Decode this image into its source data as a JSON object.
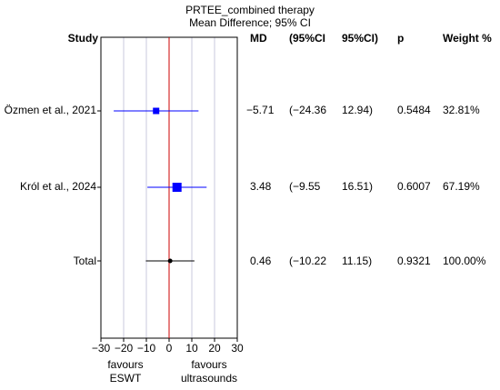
{
  "chart_data": {
    "type": "forest",
    "title": "PRTEE_combined therapy",
    "subtitle": "Mean Difference; 95% CI",
    "columns": {
      "study": "Study",
      "md": "MD",
      "ci_low": "(95%CI",
      "ci_high": "95%CI)",
      "p": "p",
      "weight": "Weight %"
    },
    "rows": [
      {
        "study": "Özmen et al., 2021",
        "md": -5.71,
        "md_text": "−5.71",
        "ci_low_text": "(−24.36",
        "ci_high_text": "12.94)",
        "ci": [
          -24.36,
          12.94
        ],
        "p": "0.5484",
        "weight": "32.81%",
        "color": "#0000ff",
        "marker": "square-small"
      },
      {
        "study": "Król et al., 2024",
        "md": 3.48,
        "md_text": "3.48",
        "ci_low_text": "(−9.55",
        "ci_high_text": "16.51)",
        "ci": [
          -9.55,
          16.51
        ],
        "p": "0.6007",
        "weight": "67.19%",
        "color": "#0000ff",
        "marker": "square-large"
      },
      {
        "study": "Total",
        "md": 0.46,
        "md_text": "0.46",
        "ci_low_text": "(−10.22",
        "ci_high_text": "11.15)",
        "ci": [
          -10.22,
          11.15
        ],
        "p": "0.9321",
        "weight": "100.00%",
        "color": "#000000",
        "marker": "dot"
      }
    ],
    "x_ticks": [
      -30,
      -20,
      -10,
      0,
      10,
      20,
      30
    ],
    "x_tick_labels": [
      "−30",
      "−20",
      "−10",
      "0",
      "10",
      "20",
      "30"
    ],
    "xlim": [
      -30,
      30
    ],
    "reference_line": 0,
    "grid": true,
    "favours_left": [
      "favours",
      "ESWT"
    ],
    "favours_right": [
      "favours",
      "ultrasounds"
    ],
    "colors": {
      "reference": "#cc0000",
      "grid": "#c8c8dc",
      "ci_study": "#0000ff",
      "ci_total": "#000000"
    }
  }
}
